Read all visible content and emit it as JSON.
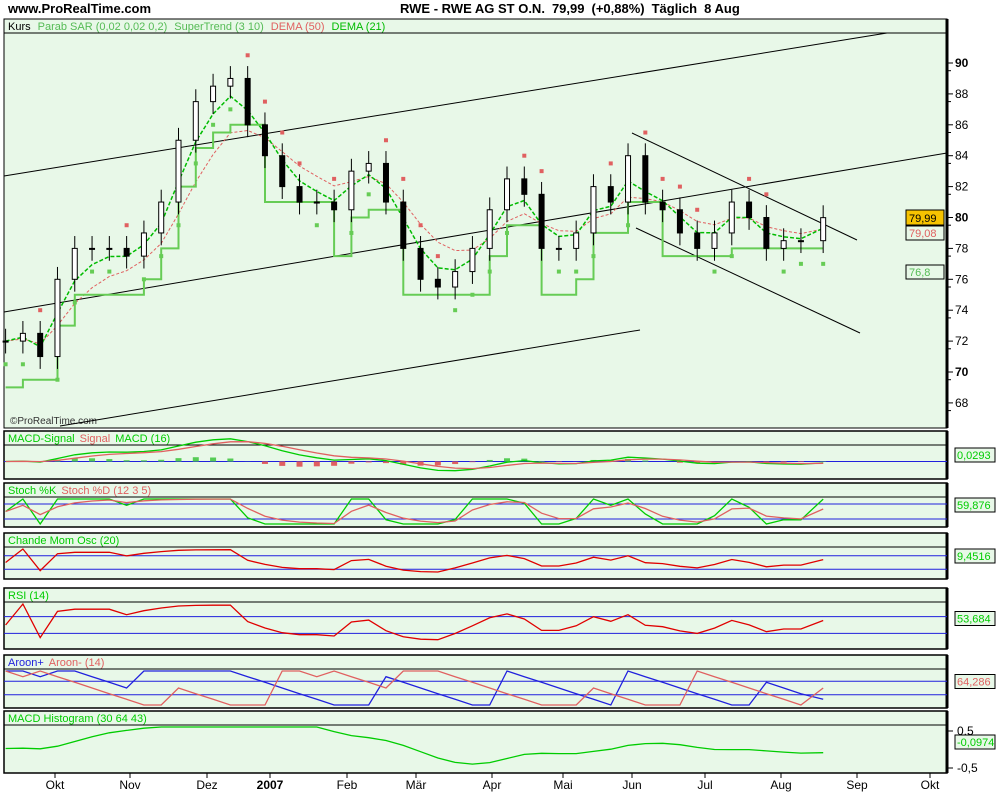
{
  "header": {
    "site": "www.ProRealTime.com",
    "title": "RWE - RWE AG ST O.N.",
    "last_price": "79,99",
    "change": "(+0,88%)",
    "period": "Täglich",
    "date": "8 Aug"
  },
  "watermark": "©ProRealTime.com",
  "colors": {
    "panel_bg": "#e8f8e8",
    "green": "#00cc00",
    "light_green": "#66cc55",
    "red": "#e06060",
    "blue": "#2020dd",
    "price_box": "#f7c300"
  },
  "main_legend": {
    "kurs": "Kurs",
    "sar": "Parab SAR (0,02 0,02 0,2)",
    "supertrend": "SuperTrend (3 10)",
    "dema50": "DEMA (50)",
    "dema21": "DEMA (21)"
  },
  "price_axis": {
    "ticks": [
      "90",
      "88",
      "86",
      "84",
      "82",
      "80",
      "78",
      "76",
      "74",
      "72",
      "70",
      "68"
    ]
  },
  "price_labels": {
    "last": "79,99",
    "dema50": "79,08",
    "supertrend": "76,8"
  },
  "panels": {
    "macd": {
      "label_a": "MACD-Signal",
      "label_b": "Signal",
      "label_c": "MACD (16)",
      "value": "0,0293"
    },
    "stoch": {
      "label_a": "Stoch %K",
      "label_b": "Stoch %D (12 3 5)",
      "value": "59,876"
    },
    "chande": {
      "label": "Chande Mom Osc (20)",
      "value": "9,4516"
    },
    "rsi": {
      "label": "RSI (14)",
      "value": "53,684"
    },
    "aroon": {
      "label_a": "Aroon+",
      "label_b": "Aroon- (14)",
      "value": "64,286"
    },
    "hist": {
      "label": "MACD Histogram (30 64 43)",
      "value": "-0,0974",
      "tick_hi": "0,5",
      "tick_lo": "-0,5"
    }
  },
  "time_axis": {
    "labels": [
      "Okt",
      "Nov",
      "Dez",
      "2007",
      "Feb",
      "Mär",
      "Apr",
      "Mai",
      "Jun",
      "Jul",
      "Aug",
      "Sep",
      "Okt"
    ]
  },
  "chart_data": {
    "type": "line",
    "title": "RWE - RWE AG ST O.N.",
    "ylim": [
      67,
      92
    ],
    "grid": false,
    "x": [
      "2006-09-11",
      "2006-09-18",
      "2006-09-25",
      "2006-10-02",
      "2006-10-09",
      "2006-10-16",
      "2006-10-23",
      "2006-10-30",
      "2006-11-06",
      "2006-11-13",
      "2006-11-20",
      "2006-11-27",
      "2006-12-04",
      "2006-12-11",
      "2006-12-18",
      "2006-12-25",
      "2007-01-01",
      "2007-01-08",
      "2007-01-15",
      "2007-01-22",
      "2007-01-29",
      "2007-02-05",
      "2007-02-12",
      "2007-02-19",
      "2007-02-26",
      "2007-03-05",
      "2007-03-12",
      "2007-03-19",
      "2007-03-26",
      "2007-04-02",
      "2007-04-09",
      "2007-04-16",
      "2007-04-23",
      "2007-04-30",
      "2007-05-07",
      "2007-05-14",
      "2007-05-21",
      "2007-05-28",
      "2007-06-04",
      "2007-06-11",
      "2007-06-18",
      "2007-06-25",
      "2007-07-02",
      "2007-07-09",
      "2007-07-16",
      "2007-07-23",
      "2007-07-30",
      "2007-08-08"
    ],
    "series": [
      {
        "name": "Kurs",
        "values": [
          72,
          72.5,
          71,
          76,
          78,
          78,
          78,
          77.5,
          79,
          81,
          85,
          87.5,
          88.5,
          89,
          86,
          84,
          82,
          81,
          81,
          80.5,
          83,
          83.5,
          81,
          78,
          76,
          75.5,
          76.5,
          78,
          80.5,
          82.5,
          81.5,
          78,
          78,
          79,
          82,
          81,
          84,
          81,
          80.5,
          79,
          78,
          79,
          81,
          80,
          78,
          78.5,
          78.5,
          79.99
        ]
      }
    ]
  }
}
